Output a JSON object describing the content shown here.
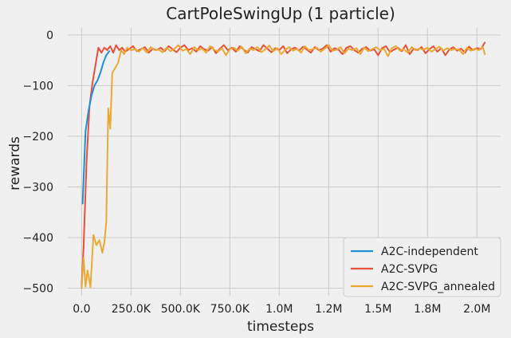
{
  "chart_data": {
    "type": "line",
    "title": "CartPoleSwingUp (1 particle)",
    "xlabel": "timesteps",
    "ylabel": "rewards",
    "xlim": [
      -70000,
      2120000
    ],
    "ylim": [
      -515,
      14
    ],
    "grid": true,
    "legend_position": "lower-right",
    "x_ticks": [
      {
        "value": 0,
        "label": "0.0"
      },
      {
        "value": 250000,
        "label": "250.0K"
      },
      {
        "value": 500000,
        "label": "500.0K"
      },
      {
        "value": 750000,
        "label": "750.0K"
      },
      {
        "value": 1000000,
        "label": "1.0M"
      },
      {
        "value": 1250000,
        "label": "1.2M"
      },
      {
        "value": 1500000,
        "label": "1.5M"
      },
      {
        "value": 1750000,
        "label": "1.8M"
      },
      {
        "value": 2000000,
        "label": "2.0M"
      }
    ],
    "y_ticks": [
      {
        "value": 0,
        "label": "0"
      },
      {
        "value": -100,
        "label": "−100"
      },
      {
        "value": -200,
        "label": "−200"
      },
      {
        "value": -300,
        "label": "−300"
      },
      {
        "value": -400,
        "label": "−400"
      },
      {
        "value": -500,
        "label": "−500"
      }
    ],
    "series": [
      {
        "name": "A2C-independent",
        "color": "#1f8fd6",
        "x": [
          5000,
          20000,
          35000,
          50000,
          65000,
          80000,
          95000,
          110000,
          125000,
          140000
        ],
        "y": [
          -333,
          -190,
          -150,
          -120,
          -100,
          -90,
          -75,
          -55,
          -40,
          -32
        ]
      },
      {
        "name": "A2C-SVPG",
        "color": "#e8503a",
        "x": [
          0,
          10000,
          25000,
          40000,
          55000,
          70000,
          85000,
          100000,
          115000,
          130000,
          145000,
          160000,
          175000,
          190000,
          205000,
          220000,
          240000,
          260000,
          280000,
          300000,
          320000,
          340000,
          360000,
          380000,
          400000,
          420000,
          440000,
          460000,
          480000,
          500000,
          520000,
          540000,
          560000,
          580000,
          600000,
          620000,
          640000,
          660000,
          680000,
          700000,
          720000,
          740000,
          760000,
          780000,
          800000,
          820000,
          840000,
          860000,
          880000,
          900000,
          920000,
          940000,
          960000,
          980000,
          1000000,
          1020000,
          1040000,
          1060000,
          1080000,
          1100000,
          1120000,
          1140000,
          1160000,
          1180000,
          1200000,
          1220000,
          1240000,
          1260000,
          1280000,
          1300000,
          1320000,
          1340000,
          1360000,
          1380000,
          1400000,
          1420000,
          1440000,
          1460000,
          1480000,
          1500000,
          1520000,
          1540000,
          1560000,
          1580000,
          1600000,
          1620000,
          1640000,
          1660000,
          1680000,
          1700000,
          1720000,
          1740000,
          1760000,
          1780000,
          1800000,
          1820000,
          1840000,
          1860000,
          1880000,
          1900000,
          1920000,
          1940000,
          1960000,
          1980000,
          2000000,
          2020000,
          2040000
        ],
        "y": [
          -495,
          -420,
          -250,
          -140,
          -95,
          -60,
          -25,
          -35,
          -25,
          -30,
          -22,
          -35,
          -20,
          -30,
          -25,
          -33,
          -28,
          -22,
          -32,
          -28,
          -24,
          -35,
          -27,
          -30,
          -25,
          -32,
          -22,
          -28,
          -34,
          -25,
          -20,
          -30,
          -26,
          -33,
          -22,
          -28,
          -31,
          -24,
          -36,
          -27,
          -20,
          -30,
          -25,
          -33,
          -22,
          -29,
          -35,
          -24,
          -28,
          -32,
          -20,
          -27,
          -34,
          -26,
          -30,
          -22,
          -36,
          -28,
          -25,
          -31,
          -23,
          -29,
          -35,
          -24,
          -30,
          -27,
          -20,
          -33,
          -26,
          -29,
          -38,
          -25,
          -22,
          -30,
          -35,
          -27,
          -24,
          -31,
          -28,
          -40,
          -26,
          -22,
          -34,
          -29,
          -25,
          -32,
          -20,
          -38,
          -27,
          -30,
          -24,
          -36,
          -28,
          -22,
          -33,
          -26,
          -40,
          -29,
          -24,
          -31,
          -27,
          -35,
          -23,
          -30,
          -26,
          -28,
          -15
        ]
      },
      {
        "name": "A2C-SVPG_annealed",
        "color": "#eaa933",
        "x": [
          0,
          10000,
          20000,
          30000,
          45000,
          60000,
          75000,
          90000,
          105000,
          115000,
          125000,
          135000,
          145000,
          155000,
          170000,
          185000,
          200000,
          215000,
          230000,
          250000,
          270000,
          290000,
          310000,
          330000,
          350000,
          370000,
          390000,
          410000,
          430000,
          450000,
          470000,
          490000,
          510000,
          530000,
          550000,
          570000,
          590000,
          610000,
          630000,
          650000,
          670000,
          690000,
          710000,
          730000,
          750000,
          770000,
          790000,
          810000,
          830000,
          850000,
          870000,
          890000,
          910000,
          930000,
          950000,
          970000,
          990000,
          1010000,
          1030000,
          1050000,
          1070000,
          1090000,
          1110000,
          1130000,
          1150000,
          1170000,
          1190000,
          1210000,
          1230000,
          1250000,
          1270000,
          1290000,
          1310000,
          1330000,
          1350000,
          1370000,
          1390000,
          1410000,
          1430000,
          1450000,
          1470000,
          1490000,
          1510000,
          1530000,
          1550000,
          1570000,
          1590000,
          1610000,
          1630000,
          1650000,
          1670000,
          1690000,
          1710000,
          1730000,
          1750000,
          1770000,
          1790000,
          1810000,
          1830000,
          1850000,
          1870000,
          1890000,
          1910000,
          1930000,
          1950000,
          1970000,
          1990000,
          2010000,
          2030000,
          2040000
        ],
        "y": [
          -500,
          -440,
          -497,
          -465,
          -498,
          -395,
          -415,
          -405,
          -430,
          -410,
          -370,
          -145,
          -185,
          -75,
          -65,
          -55,
          -30,
          -38,
          -25,
          -30,
          -28,
          -33,
          -26,
          -35,
          -24,
          -30,
          -29,
          -34,
          -25,
          -32,
          -27,
          -20,
          -31,
          -28,
          -38,
          -24,
          -30,
          -27,
          -35,
          -22,
          -29,
          -33,
          -26,
          -40,
          -28,
          -25,
          -31,
          -23,
          -36,
          -27,
          -30,
          -24,
          -34,
          -28,
          -21,
          -32,
          -26,
          -38,
          -29,
          -24,
          -31,
          -27,
          -35,
          -22,
          -30,
          -28,
          -25,
          -33,
          -27,
          -20,
          -31,
          -29,
          -24,
          -36,
          -27,
          -30,
          -26,
          -38,
          -25,
          -32,
          -28,
          -24,
          -30,
          -27,
          -42,
          -26,
          -22,
          -31,
          -28,
          -35,
          -24,
          -30,
          -27,
          -29,
          -25,
          -33,
          -28,
          -23,
          -31,
          -26,
          -30,
          -28,
          -29,
          -38,
          -25,
          -31,
          -27,
          -30,
          -24,
          -38
        ]
      }
    ]
  }
}
